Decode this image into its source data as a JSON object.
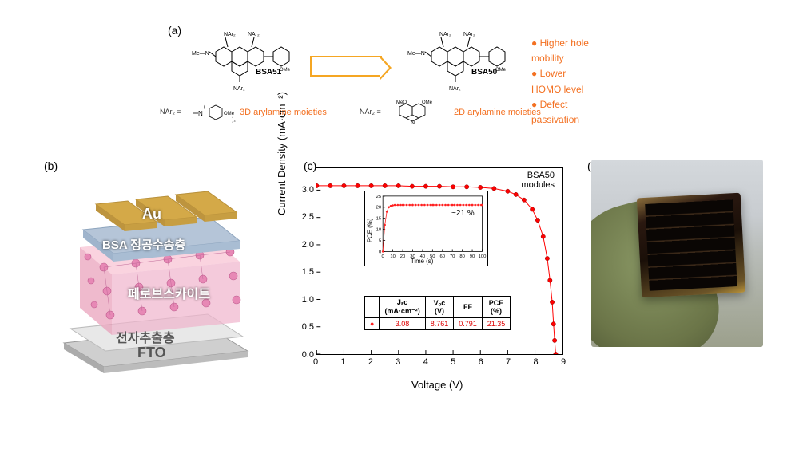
{
  "labels": {
    "a": "(a)",
    "b": "(b)",
    "c": "(c)",
    "d": "(d)"
  },
  "panel_a": {
    "mol_left_name": "BSA51",
    "mol_right_name": "BSA50",
    "moiety_left": "3D arylamine moieties",
    "moiety_right": "2D arylamine moieties",
    "nar_prefix_left": "NAr₂ =",
    "nar_prefix_right": "NAr₂ =",
    "bullets": [
      "Higher hole mobility",
      "Lower HOMO level",
      "Defect passivation"
    ]
  },
  "panel_b": {
    "layers": {
      "au": "Au",
      "bsa": "BSA 정공수송층",
      "pvk": "페로브스카이트",
      "etl": "전자추출층",
      "fto": "FTO"
    }
  },
  "panel_c": {
    "type": "line",
    "title": "BSA50\nmodules",
    "xlabel": "Voltage (V)",
    "ylabel": "Current Density (mA·cm⁻²)",
    "xlim": [
      0,
      9
    ],
    "ylim": [
      0,
      3.4
    ],
    "xtick_step": 1,
    "ytick_step": 0.5,
    "curve_color": "#ff0000",
    "curve_points": [
      [
        0,
        3.08
      ],
      [
        0.5,
        3.08
      ],
      [
        1,
        3.08
      ],
      [
        1.5,
        3.08
      ],
      [
        2,
        3.08
      ],
      [
        2.5,
        3.08
      ],
      [
        3,
        3.08
      ],
      [
        3.5,
        3.07
      ],
      [
        4,
        3.07
      ],
      [
        4.5,
        3.07
      ],
      [
        5,
        3.06
      ],
      [
        5.5,
        3.06
      ],
      [
        6,
        3.05
      ],
      [
        6.5,
        3.03
      ],
      [
        7,
        2.98
      ],
      [
        7.3,
        2.92
      ],
      [
        7.6,
        2.82
      ],
      [
        7.9,
        2.65
      ],
      [
        8.1,
        2.45
      ],
      [
        8.3,
        2.15
      ],
      [
        8.45,
        1.75
      ],
      [
        8.55,
        1.35
      ],
      [
        8.63,
        0.95
      ],
      [
        8.68,
        0.55
      ],
      [
        8.72,
        0.25
      ],
      [
        8.76,
        0
      ]
    ],
    "inset": {
      "xlabel": "Time (s)",
      "ylabel": "PCE (%)",
      "xlim": [
        0,
        100
      ],
      "ylim": [
        0,
        25
      ],
      "xtick_step": 10,
      "ytick_step": 5,
      "note": "~21 %",
      "points": [
        [
          0,
          0
        ],
        [
          2,
          12
        ],
        [
          4,
          18
        ],
        [
          6,
          20
        ],
        [
          8,
          20.6
        ],
        [
          10,
          20.8
        ],
        [
          20,
          21
        ],
        [
          30,
          21
        ],
        [
          50,
          21
        ],
        [
          70,
          21
        ],
        [
          90,
          21
        ],
        [
          100,
          21
        ]
      ]
    },
    "table": {
      "headers": [
        "",
        "Jₛc\n(mA·cm⁻²)",
        "Vₒc\n(V)",
        "FF",
        "PCE\n(%)"
      ],
      "row_marker": "●",
      "row": [
        "3.08",
        "8.761",
        "0.791",
        "21.35"
      ]
    }
  },
  "colors": {
    "orange": "#f37021",
    "arrow_border": "#f5a623",
    "red": "#ff2020",
    "au": "#d4a948",
    "bsa": "#b5c5d8",
    "pvk1": "#f5aec5",
    "pvk2": "#d968a0",
    "etl": "#e8e8e8",
    "fto": "#cfcfcf"
  }
}
